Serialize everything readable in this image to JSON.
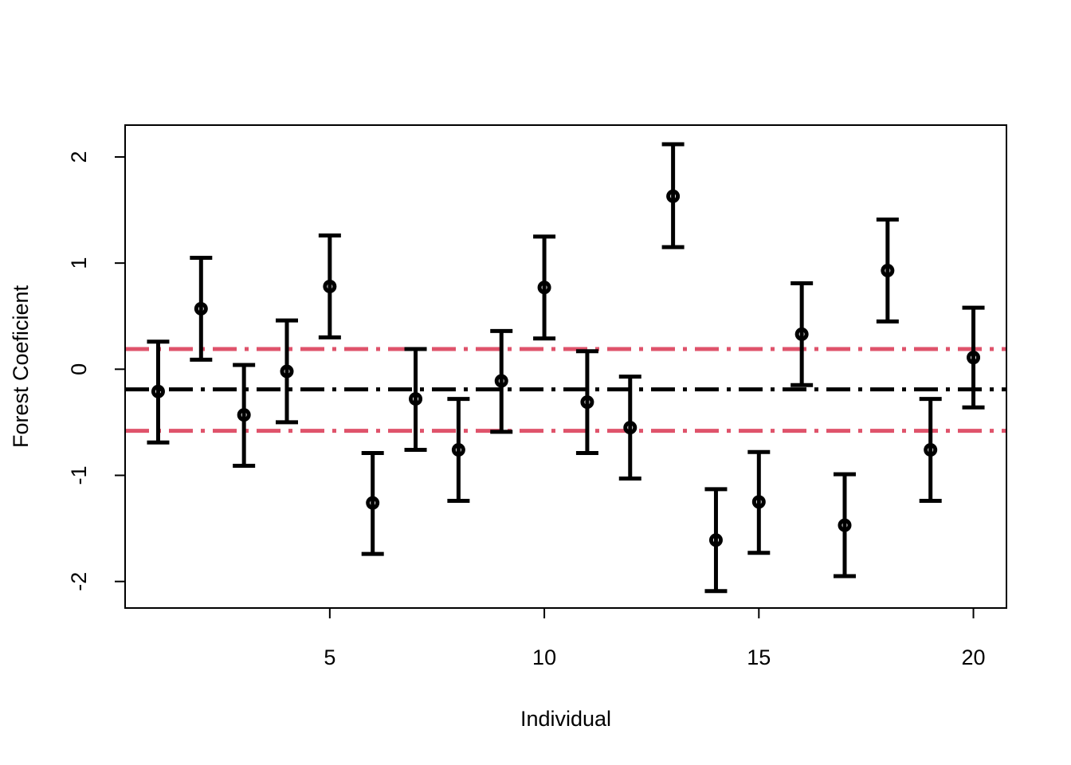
{
  "chart_data": {
    "type": "scatter",
    "title": "",
    "xlabel": "Individual",
    "ylabel": "Forest Coeficient",
    "xlim": [
      0.23,
      20.77
    ],
    "ylim": [
      -2.25,
      2.3
    ],
    "xticks": [
      5,
      10,
      15,
      20
    ],
    "xtick_labels": [
      "5",
      "10",
      "15",
      "20"
    ],
    "yticks": [
      -2,
      -1,
      0,
      1,
      2
    ],
    "ytick_labels": [
      "-2",
      "-1",
      "0",
      "1",
      "2"
    ],
    "grid": false,
    "legend": "none",
    "point_color": "#000000",
    "points": [
      {
        "x": 1,
        "y": -0.21,
        "lower": -0.69,
        "upper": 0.26
      },
      {
        "x": 2,
        "y": 0.57,
        "lower": 0.09,
        "upper": 1.05
      },
      {
        "x": 3,
        "y": -0.43,
        "lower": -0.91,
        "upper": 0.04
      },
      {
        "x": 4,
        "y": -0.02,
        "lower": -0.5,
        "upper": 0.46
      },
      {
        "x": 5,
        "y": 0.78,
        "lower": 0.3,
        "upper": 1.26
      },
      {
        "x": 6,
        "y": -1.26,
        "lower": -1.74,
        "upper": -0.79
      },
      {
        "x": 7,
        "y": -0.28,
        "lower": -0.76,
        "upper": 0.19
      },
      {
        "x": 8,
        "y": -0.76,
        "lower": -1.24,
        "upper": -0.28
      },
      {
        "x": 9,
        "y": -0.11,
        "lower": -0.59,
        "upper": 0.36
      },
      {
        "x": 10,
        "y": 0.77,
        "lower": 0.29,
        "upper": 1.25
      },
      {
        "x": 11,
        "y": -0.31,
        "lower": -0.79,
        "upper": 0.17
      },
      {
        "x": 12,
        "y": -0.55,
        "lower": -1.03,
        "upper": -0.07
      },
      {
        "x": 13,
        "y": 1.63,
        "lower": 1.15,
        "upper": 2.12
      },
      {
        "x": 14,
        "y": -1.61,
        "lower": -2.09,
        "upper": -1.13
      },
      {
        "x": 15,
        "y": -1.25,
        "lower": -1.73,
        "upper": -0.78
      },
      {
        "x": 16,
        "y": 0.33,
        "lower": -0.15,
        "upper": 0.81
      },
      {
        "x": 17,
        "y": -1.47,
        "lower": -1.95,
        "upper": -0.99
      },
      {
        "x": 18,
        "y": 0.93,
        "lower": 0.45,
        "upper": 1.41
      },
      {
        "x": 19,
        "y": -0.76,
        "lower": -1.24,
        "upper": -0.28
      },
      {
        "x": 20,
        "y": 0.11,
        "lower": -0.36,
        "upper": 0.58
      }
    ],
    "reference_lines": [
      {
        "y": -0.19,
        "color": "#000000",
        "style": "dash-dot"
      },
      {
        "y": 0.19,
        "color": "#DF536B",
        "style": "dash-dot"
      },
      {
        "y": -0.58,
        "color": "#DF536B",
        "style": "dash-dot"
      }
    ]
  }
}
